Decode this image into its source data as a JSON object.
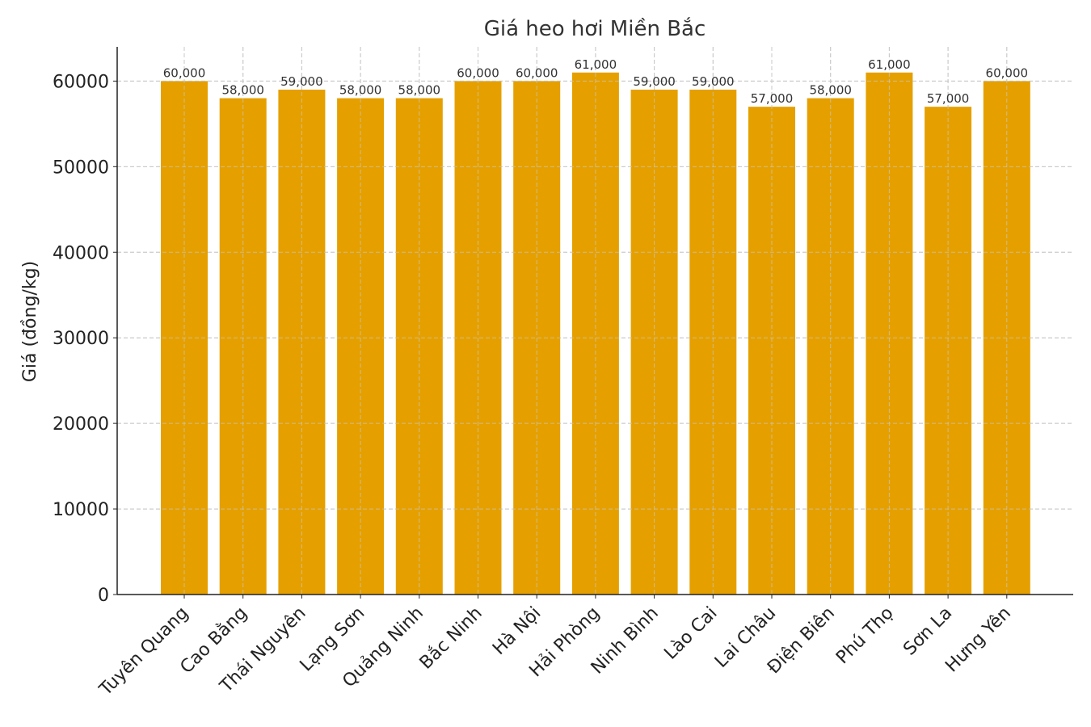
{
  "chart_data": {
    "type": "bar",
    "title": "Giá heo hơi Miền Bắc",
    "xlabel": "",
    "ylabel": "Giá (đồng/kg)",
    "categories": [
      "Tuyên Quang",
      "Cao Bằng",
      "Thái Nguyên",
      "Lạng Sơn",
      "Quảng Ninh",
      "Bắc Ninh",
      "Hà Nội",
      "Hải Phòng",
      "Ninh Bình",
      "Lào Cai",
      "Lai Châu",
      "Điện Biên",
      "Phú Thọ",
      "Sơn La",
      "Hưng Yên"
    ],
    "values": [
      60000,
      58000,
      59000,
      58000,
      58000,
      60000,
      60000,
      61000,
      59000,
      59000,
      57000,
      58000,
      61000,
      57000,
      60000
    ],
    "value_labels": [
      "60,000",
      "58,000",
      "59,000",
      "58,000",
      "58,000",
      "60,000",
      "60,000",
      "61,000",
      "59,000",
      "59,000",
      "57,000",
      "58,000",
      "61,000",
      "57,000",
      "60,000"
    ],
    "ylim": [
      0,
      64000
    ],
    "yticks": [
      0,
      10000,
      20000,
      30000,
      40000,
      50000,
      60000
    ],
    "ytick_labels": [
      "0",
      "10000",
      "20000",
      "30000",
      "40000",
      "50000",
      "60000"
    ],
    "grid": true,
    "bar_color": "#E5A000"
  }
}
